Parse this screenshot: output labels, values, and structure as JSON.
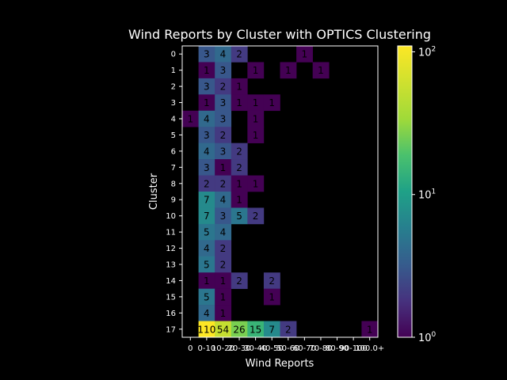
{
  "chart_data": {
    "type": "heatmap",
    "title": "Wind Reports by Cluster with OPTICS Clustering",
    "xlabel": "Wind Reports",
    "ylabel": "Cluster",
    "x_categories": [
      "0",
      "0-10",
      "10-20",
      "20-30",
      "30-40",
      "40-50",
      "50-60",
      "60-70",
      "70-80",
      "80-90",
      "90-100",
      "100.0+"
    ],
    "x_tick_labels": [
      "0",
      "0-10",
      "10-20",
      "20-30",
      "30-40",
      "40-50",
      "50-60",
      "60-70",
      "70-80",
      "80-90",
      "90-100",
      "100.0+"
    ],
    "y_categories": [
      "0",
      "1",
      "2",
      "3",
      "4",
      "5",
      "6",
      "7",
      "8",
      "9",
      "10",
      "11",
      "12",
      "13",
      "14",
      "15",
      "16",
      "17"
    ],
    "values": [
      [
        null,
        3,
        4,
        2,
        null,
        null,
        null,
        1,
        null,
        null,
        null,
        null
      ],
      [
        null,
        1,
        3,
        null,
        1,
        null,
        1,
        null,
        1,
        null,
        null,
        null
      ],
      [
        null,
        3,
        2,
        1,
        null,
        null,
        null,
        null,
        null,
        null,
        null,
        null
      ],
      [
        null,
        1,
        3,
        1,
        1,
        1,
        null,
        null,
        null,
        null,
        null,
        null
      ],
      [
        1,
        4,
        3,
        null,
        1,
        null,
        null,
        null,
        null,
        null,
        null,
        null
      ],
      [
        null,
        3,
        2,
        null,
        1,
        null,
        null,
        null,
        null,
        null,
        null,
        null
      ],
      [
        null,
        4,
        3,
        2,
        null,
        null,
        null,
        null,
        null,
        null,
        null,
        null
      ],
      [
        null,
        3,
        1,
        2,
        null,
        null,
        null,
        null,
        null,
        null,
        null,
        null
      ],
      [
        null,
        2,
        2,
        1,
        1,
        null,
        null,
        null,
        null,
        null,
        null,
        null
      ],
      [
        null,
        7,
        4,
        1,
        null,
        null,
        null,
        null,
        null,
        null,
        null,
        null
      ],
      [
        null,
        7,
        3,
        5,
        2,
        null,
        null,
        null,
        null,
        null,
        null,
        null
      ],
      [
        null,
        5,
        4,
        null,
        null,
        null,
        null,
        null,
        null,
        null,
        null,
        null
      ],
      [
        null,
        4,
        2,
        null,
        null,
        null,
        null,
        null,
        null,
        null,
        null,
        null
      ],
      [
        null,
        5,
        2,
        null,
        null,
        null,
        null,
        null,
        null,
        null,
        null,
        null
      ],
      [
        null,
        1,
        1,
        2,
        null,
        2,
        null,
        null,
        null,
        null,
        null,
        null
      ],
      [
        null,
        5,
        1,
        null,
        null,
        1,
        null,
        null,
        null,
        null,
        null,
        null
      ],
      [
        null,
        4,
        1,
        null,
        null,
        null,
        null,
        null,
        null,
        null,
        null,
        null
      ],
      [
        null,
        110,
        54,
        26,
        15,
        7,
        2,
        null,
        null,
        null,
        null,
        1
      ]
    ],
    "colormap": "viridis",
    "color_scale": "log",
    "colorbar": {
      "range": [
        1,
        110
      ],
      "ticks": [
        {
          "base": "10",
          "exp": "0",
          "value": 1
        },
        {
          "base": "10",
          "exp": "1",
          "value": 10
        },
        {
          "base": "10",
          "exp": "2",
          "value": 100
        }
      ]
    },
    "annotation_colors": {
      "dark": "#000000",
      "light": "#000000"
    },
    "background": "#000000",
    "foreground": "#ffffff"
  }
}
